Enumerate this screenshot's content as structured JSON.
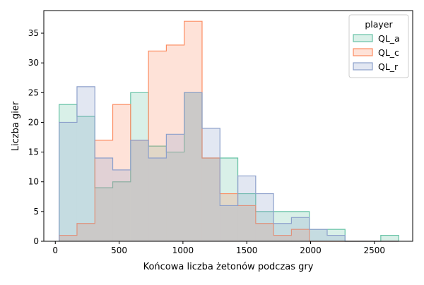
{
  "chart_data": {
    "type": "histogram",
    "xlabel": "Końcowa liczba żetonów podczas gry",
    "ylabel": "Liczba gier",
    "xlim": [
      -90,
      2800
    ],
    "ylim": [
      0,
      38.8
    ],
    "xticks": [
      0,
      500,
      1000,
      1500,
      2000,
      2500
    ],
    "yticks": [
      0,
      5,
      10,
      15,
      20,
      25,
      30,
      35
    ],
    "grid": false,
    "legend": {
      "title": "player",
      "position": "top-right"
    },
    "bin_edges": [
      30,
      170,
      310,
      450,
      590,
      730,
      870,
      1010,
      1150,
      1290,
      1430,
      1570,
      1710,
      1850,
      1990,
      2130,
      2270,
      2410,
      2550,
      2690
    ],
    "series": [
      {
        "name": "QL_a",
        "color": "#66c2a5",
        "counts": [
          23,
          21,
          9,
          10,
          25,
          16,
          15,
          25,
          14,
          14,
          8,
          5,
          5,
          5,
          2,
          2,
          0,
          0,
          1
        ]
      },
      {
        "name": "QL_c",
        "color": "#fc8d62",
        "counts": [
          1,
          3,
          17,
          23,
          17,
          32,
          33,
          37,
          14,
          8,
          6,
          3,
          1,
          2,
          0,
          0,
          0,
          0,
          0
        ]
      },
      {
        "name": "QL_r",
        "color": "#8da0cb",
        "counts": [
          20,
          26,
          14,
          12,
          17,
          14,
          18,
          25,
          19,
          6,
          11,
          8,
          3,
          4,
          2,
          1,
          0,
          0,
          0
        ]
      }
    ]
  }
}
